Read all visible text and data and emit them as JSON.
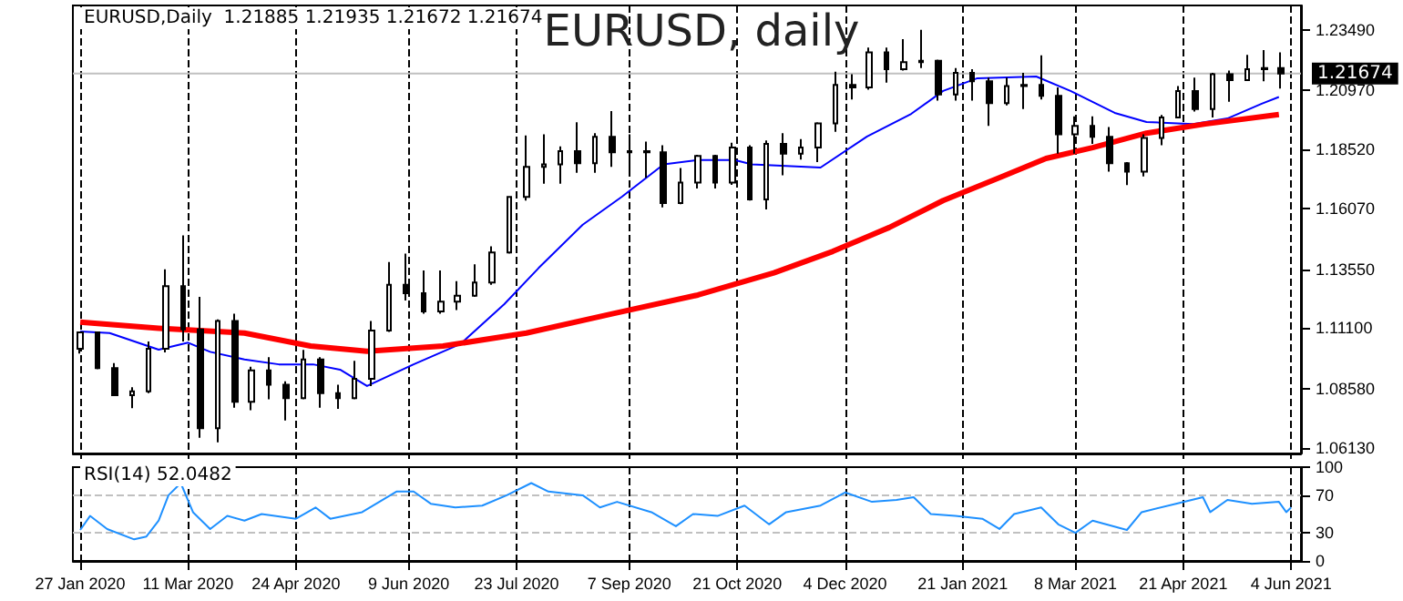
{
  "chart_data": [
    {
      "type": "candlestick",
      "title": "EURUSD, daily",
      "subtitle": "EURUSD,Daily  1.21885 1.21935 1.21672 1.21674",
      "color": "#000000",
      "x": [
        "2020-01-27",
        "2020-02-03",
        "2020-02-10",
        "2020-02-17",
        "2020-02-24",
        "2020-03-02",
        "2020-03-09",
        "2020-03-16",
        "2020-03-23",
        "2020-03-30",
        "2020-04-06",
        "2020-04-13",
        "2020-04-20",
        "2020-04-27",
        "2020-05-04",
        "2020-05-11",
        "2020-05-18",
        "2020-05-25",
        "2020-06-01",
        "2020-06-08",
        "2020-06-15",
        "2020-06-22",
        "2020-06-29",
        "2020-07-06",
        "2020-07-13",
        "2020-07-20",
        "2020-07-27",
        "2020-08-03",
        "2020-08-10",
        "2020-08-17",
        "2020-08-24",
        "2020-08-31",
        "2020-09-07",
        "2020-09-14",
        "2020-09-21",
        "2020-09-28",
        "2020-10-05",
        "2020-10-12",
        "2020-10-19",
        "2020-10-26",
        "2020-11-02",
        "2020-11-09",
        "2020-11-16",
        "2020-11-23",
        "2020-11-30",
        "2020-12-07",
        "2020-12-14",
        "2020-12-21",
        "2020-12-28",
        "2021-01-04",
        "2021-01-11",
        "2021-01-18",
        "2021-01-25",
        "2021-02-01",
        "2021-02-08",
        "2021-02-15",
        "2021-02-22",
        "2021-03-01",
        "2021-03-08",
        "2021-03-15",
        "2021-03-22",
        "2021-03-29",
        "2021-04-05",
        "2021-04-12",
        "2021-04-19",
        "2021-04-26",
        "2021-05-03",
        "2021-05-10",
        "2021-05-17",
        "2021-05-24",
        "2021-05-31"
      ],
      "ohlc": [
        [
          1.1025,
          1.1095,
          1.1005,
          1.1093
        ],
        [
          1.1093,
          1.1095,
          1.094,
          1.0944
        ],
        [
          1.0944,
          1.0965,
          1.083,
          1.0832
        ],
        [
          1.0832,
          1.0865,
          1.0778,
          1.0848
        ],
        [
          1.0848,
          1.1055,
          1.084,
          1.1025
        ],
        [
          1.1025,
          1.1355,
          1.101,
          1.1285
        ],
        [
          1.1285,
          1.1495,
          1.1055,
          1.1105
        ],
        [
          1.1105,
          1.124,
          1.0655,
          1.0695
        ],
        [
          1.0695,
          1.1147,
          1.0636,
          1.114
        ],
        [
          1.114,
          1.117,
          1.078,
          1.0805
        ],
        [
          1.0805,
          1.095,
          1.077,
          1.0935
        ],
        [
          1.0935,
          1.099,
          1.0815,
          1.0875
        ],
        [
          1.0875,
          1.089,
          1.0727,
          1.082
        ],
        [
          1.082,
          1.102,
          1.0815,
          1.098
        ],
        [
          1.098,
          1.099,
          1.078,
          1.084
        ],
        [
          1.084,
          1.0875,
          1.0775,
          1.082
        ],
        [
          1.082,
          1.0975,
          1.0815,
          1.09
        ],
        [
          1.09,
          1.114,
          1.087,
          1.11
        ],
        [
          1.11,
          1.1385,
          1.1095,
          1.129
        ],
        [
          1.129,
          1.142,
          1.1225,
          1.1255
        ],
        [
          1.1255,
          1.135,
          1.117,
          1.118
        ],
        [
          1.118,
          1.135,
          1.117,
          1.122
        ],
        [
          1.122,
          1.1305,
          1.1185,
          1.1245
        ],
        [
          1.1245,
          1.1375,
          1.124,
          1.13
        ],
        [
          1.13,
          1.145,
          1.129,
          1.1425
        ],
        [
          1.1425,
          1.1655,
          1.142,
          1.1655
        ],
        [
          1.1655,
          1.191,
          1.164,
          1.178
        ],
        [
          1.178,
          1.1915,
          1.171,
          1.179
        ],
        [
          1.179,
          1.1865,
          1.171,
          1.1845
        ],
        [
          1.1845,
          1.1965,
          1.1755,
          1.1795
        ],
        [
          1.1795,
          1.192,
          1.1755,
          1.1905
        ],
        [
          1.1905,
          1.2011,
          1.178,
          1.184
        ],
        [
          1.184,
          1.1915,
          1.1755,
          1.1845
        ],
        [
          1.1845,
          1.1885,
          1.1735,
          1.184
        ],
        [
          1.184,
          1.187,
          1.1612,
          1.163
        ],
        [
          1.163,
          1.1775,
          1.1625,
          1.1715
        ],
        [
          1.1715,
          1.183,
          1.169,
          1.1825
        ],
        [
          1.1825,
          1.183,
          1.169,
          1.1715
        ],
        [
          1.1715,
          1.188,
          1.1705,
          1.186
        ],
        [
          1.186,
          1.187,
          1.164,
          1.1645
        ],
        [
          1.1645,
          1.189,
          1.1603,
          1.1875
        ],
        [
          1.1875,
          1.192,
          1.1745,
          1.1835
        ],
        [
          1.1835,
          1.1895,
          1.181,
          1.186
        ],
        [
          1.186,
          1.1965,
          1.18,
          1.196
        ],
        [
          1.196,
          1.2175,
          1.1925,
          1.212
        ],
        [
          1.212,
          1.2165,
          1.206,
          1.211
        ],
        [
          1.211,
          1.2275,
          1.21,
          1.2255
        ],
        [
          1.2255,
          1.2275,
          1.213,
          1.2185
        ],
        [
          1.2185,
          1.231,
          1.218,
          1.2215
        ],
        [
          1.2215,
          1.2349,
          1.219,
          1.222
        ],
        [
          1.222,
          1.2225,
          1.2055,
          1.208
        ],
        [
          1.208,
          1.219,
          1.2055,
          1.217
        ],
        [
          1.217,
          1.2185,
          1.2055,
          1.2135
        ],
        [
          1.2135,
          1.215,
          1.195,
          1.2045
        ],
        [
          1.2045,
          1.215,
          1.2035,
          1.2115
        ],
        [
          1.2115,
          1.217,
          1.202,
          1.212
        ],
        [
          1.212,
          1.2243,
          1.206,
          1.2075
        ],
        [
          1.2075,
          1.211,
          1.1835,
          1.1915
        ],
        [
          1.1915,
          1.199,
          1.1835,
          1.195
        ],
        [
          1.195,
          1.199,
          1.1875,
          1.1905
        ],
        [
          1.1905,
          1.1945,
          1.176,
          1.1795
        ],
        [
          1.1795,
          1.18,
          1.1704,
          1.176
        ],
        [
          1.176,
          1.1915,
          1.174,
          1.19
        ],
        [
          1.19,
          1.1995,
          1.187,
          1.1985
        ],
        [
          1.1985,
          1.2115,
          1.1985,
          1.2095
        ],
        [
          1.2095,
          1.215,
          1.201,
          1.202
        ],
        [
          1.202,
          1.217,
          1.1985,
          1.2165
        ],
        [
          1.2165,
          1.218,
          1.205,
          1.214
        ],
        [
          1.214,
          1.2245,
          1.214,
          1.2185
        ],
        [
          1.2185,
          1.2265,
          1.2135,
          1.219
        ],
        [
          1.219,
          1.2255,
          1.2105,
          1.2167
        ]
      ],
      "series": [
        {
          "type": "line",
          "color": "#0000ff",
          "x": [
            "2020-01-27",
            "2020-02-08",
            "2020-02-28",
            "2020-03-11",
            "2020-03-20",
            "2020-04-03",
            "2020-04-17",
            "2020-05-01",
            "2020-05-12",
            "2020-05-23",
            "2020-06-11",
            "2020-06-30",
            "2020-07-18",
            "2020-08-01",
            "2020-08-19",
            "2020-09-04",
            "2020-09-21",
            "2020-10-05",
            "2020-10-20",
            "2020-10-27",
            "2020-11-24",
            "2020-12-13",
            "2020-12-31",
            "2021-01-13",
            "2021-01-27",
            "2021-02-20",
            "2021-03-06",
            "2021-03-24",
            "2021-04-06",
            "2021-04-25",
            "2021-05-09",
            "2021-05-23",
            "2021-05-30"
          ],
          "values": [
            1.1097,
            1.109,
            1.1021,
            1.105,
            1.1012,
            1.098,
            1.096,
            1.096,
            1.0938,
            1.087,
            1.096,
            1.1044,
            1.121,
            1.136,
            1.154,
            1.1656,
            1.179,
            1.1808,
            1.1808,
            1.179,
            1.1777,
            1.1906,
            1.2,
            1.2095,
            1.2148,
            1.2155,
            1.2095,
            1.2004,
            1.1966,
            1.1958,
            1.1981,
            1.2042,
            1.207
          ]
        },
        {
          "type": "line",
          "color": "#ff0000",
          "x": [
            "2020-01-27",
            "2020-02-28",
            "2020-04-03",
            "2020-04-30",
            "2020-05-23",
            "2020-06-23",
            "2020-07-27",
            "2020-08-31",
            "2020-10-05",
            "2020-10-20",
            "2020-11-05",
            "2020-11-29",
            "2020-12-22",
            "2021-01-13",
            "2021-02-06",
            "2021-02-24",
            "2021-03-15",
            "2021-04-06",
            "2021-04-30",
            "2021-05-30"
          ],
          "values": [
            1.1135,
            1.111,
            1.109,
            1.1036,
            1.1014,
            1.1036,
            1.109,
            1.117,
            1.1248,
            1.1293,
            1.134,
            1.1429,
            1.1528,
            1.164,
            1.1739,
            1.1815,
            1.186,
            1.192,
            1.1958,
            1.1997
          ]
        }
      ],
      "marker": "none",
      "xlim": [
        "2020-01-24",
        "2021-06-08"
      ],
      "xticks": [
        {
          "value": "2020-01-27",
          "label": null
        },
        {
          "value": "2020-03-11",
          "label": null
        },
        {
          "value": "2020-04-24",
          "label": null
        },
        {
          "value": "2020-06-09",
          "label": null
        },
        {
          "value": "2020-07-23",
          "label": null
        },
        {
          "value": "2020-09-07",
          "label": null
        },
        {
          "value": "2020-10-21",
          "label": null
        },
        {
          "value": "2020-12-04",
          "label": null
        },
        {
          "value": "2021-01-21",
          "label": null
        },
        {
          "value": "2021-03-08",
          "label": null
        },
        {
          "value": "2021-04-21",
          "label": null
        },
        {
          "value": "2021-06-04",
          "label": null
        }
      ],
      "ylim": [
        1.059,
        1.245
      ],
      "yticks": [
        {
          "value": 1.0613,
          "label": "1.06130"
        },
        {
          "value": 1.0858,
          "label": "1.08580"
        },
        {
          "value": 1.111,
          "label": "1.11100"
        },
        {
          "value": 1.1355,
          "label": "1.13550"
        },
        {
          "value": 1.1607,
          "label": "1.16070"
        },
        {
          "value": 1.1852,
          "label": "1.18520"
        },
        {
          "value": 1.2097,
          "label": "1.20970"
        },
        {
          "value": 1.2349,
          "label": "1.23490"
        }
      ],
      "ref_lines": [
        {
          "axis": "y",
          "value": 1.21674,
          "label": "1.21674",
          "color": "#c0c0c0"
        }
      ],
      "grid": "x",
      "tick_labels": "y"
    },
    {
      "type": "line",
      "title": "RSI(14) 52.0482",
      "color": "#1e90ff",
      "marker": "none",
      "x": [
        "2020-01-27",
        "2020-01-31",
        "2020-02-07",
        "2020-02-18",
        "2020-02-23",
        "2020-02-28",
        "2020-03-03",
        "2020-03-08",
        "2020-03-13",
        "2020-03-20",
        "2020-03-27",
        "2020-04-03",
        "2020-04-10",
        "2020-04-24",
        "2020-05-02",
        "2020-05-08",
        "2020-05-21",
        "2020-06-04",
        "2020-06-11",
        "2020-06-18",
        "2020-06-28",
        "2020-07-09",
        "2020-07-19",
        "2020-07-29",
        "2020-08-05",
        "2020-08-19",
        "2020-08-26",
        "2020-09-02",
        "2020-09-16",
        "2020-09-26",
        "2020-10-03",
        "2020-10-13",
        "2020-10-24",
        "2020-11-03",
        "2020-11-10",
        "2020-11-24",
        "2020-12-04",
        "2020-12-15",
        "2020-12-25",
        "2021-01-01",
        "2021-01-08",
        "2021-01-18",
        "2021-01-29",
        "2021-02-05",
        "2021-02-11",
        "2021-02-22",
        "2021-03-01",
        "2021-03-08",
        "2021-03-15",
        "2021-03-29",
        "2021-04-04",
        "2021-04-18",
        "2021-04-29",
        "2021-05-02",
        "2021-05-09",
        "2021-05-19",
        "2021-05-30",
        "2021-06-02",
        "2021-06-04"
      ],
      "values": [
        33,
        48,
        34,
        23,
        26,
        43,
        70,
        83,
        52,
        34,
        48,
        43,
        50,
        45,
        57,
        45,
        52,
        74,
        74,
        61,
        57,
        59,
        70,
        83,
        74,
        70,
        57,
        63,
        52,
        37,
        50,
        48,
        59,
        39,
        52,
        59,
        73,
        63,
        65,
        68,
        50,
        48,
        45,
        34,
        50,
        57,
        39,
        30,
        43,
        33,
        52,
        61,
        68,
        52,
        65,
        61,
        63,
        52,
        57
      ],
      "xlim": [
        "2020-01-24",
        "2021-06-08"
      ],
      "xticks": [
        {
          "value": "2020-01-27",
          "label": "27 Jan 2020"
        },
        {
          "value": "2020-03-11",
          "label": "11 Mar 2020"
        },
        {
          "value": "2020-04-24",
          "label": "24 Apr 2020"
        },
        {
          "value": "2020-06-09",
          "label": "9 Jun 2020"
        },
        {
          "value": "2020-07-23",
          "label": "23 Jul 2020"
        },
        {
          "value": "2020-09-07",
          "label": "7 Sep 2020"
        },
        {
          "value": "2020-10-21",
          "label": "21 Oct 2020"
        },
        {
          "value": "2020-12-04",
          "label": "4 Dec 2020"
        },
        {
          "value": "2021-01-21",
          "label": "21 Jan 2021"
        },
        {
          "value": "2021-03-08",
          "label": "8 Mar 2021"
        },
        {
          "value": "2021-04-21",
          "label": "21 Apr 2021"
        },
        {
          "value": "2021-06-04",
          "label": "4 Jun 2021"
        }
      ],
      "ylim": [
        0,
        100
      ],
      "yticks": [
        0,
        30,
        70,
        100
      ],
      "ref_lines": [
        {
          "axis": "y",
          "value": 30,
          "color": "#c0c0c0",
          "line_style": "dashed"
        },
        {
          "axis": "y",
          "value": 70,
          "color": "#c0c0c0",
          "line_style": "dashed"
        }
      ],
      "grid": "x"
    }
  ]
}
